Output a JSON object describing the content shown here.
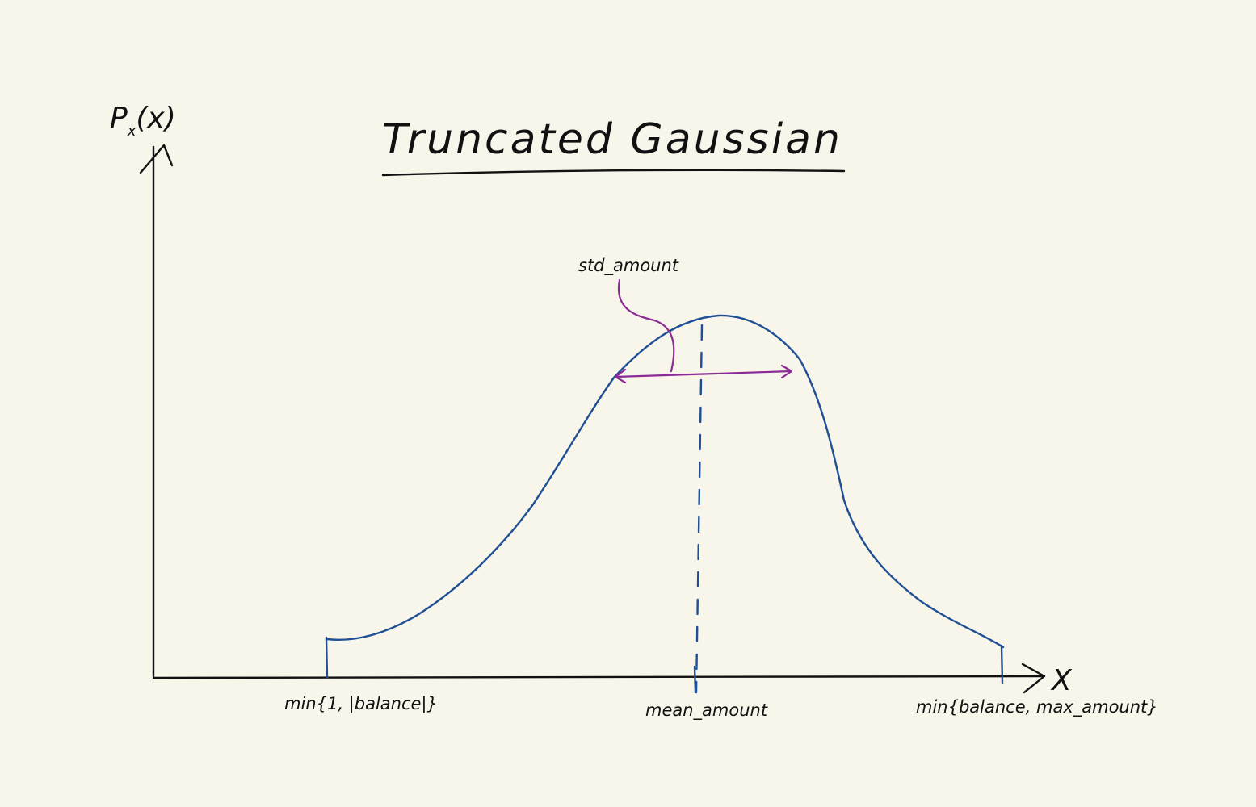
{
  "diagram": {
    "title": "Truncated Gaussian",
    "y_axis_label": "P",
    "y_axis_label_subscript": "x",
    "y_axis_label_arg": "(x)",
    "x_axis_label": "X",
    "std_label": "std_amount",
    "tick_labels": {
      "lower_bound": "min{1, |balance|}",
      "mean": "mean_amount",
      "upper_bound": "min{balance, max_amount}"
    },
    "colors": {
      "background": "#f8f5ea",
      "ink": "#111111",
      "curve": "#1f4f94",
      "annotation": "#8a2b96"
    }
  }
}
